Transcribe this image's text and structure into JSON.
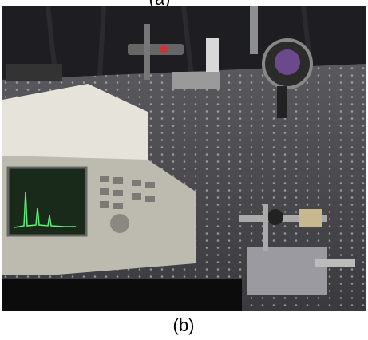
{
  "figure": {
    "top_caption": "(a)",
    "caption": "(b)"
  }
}
